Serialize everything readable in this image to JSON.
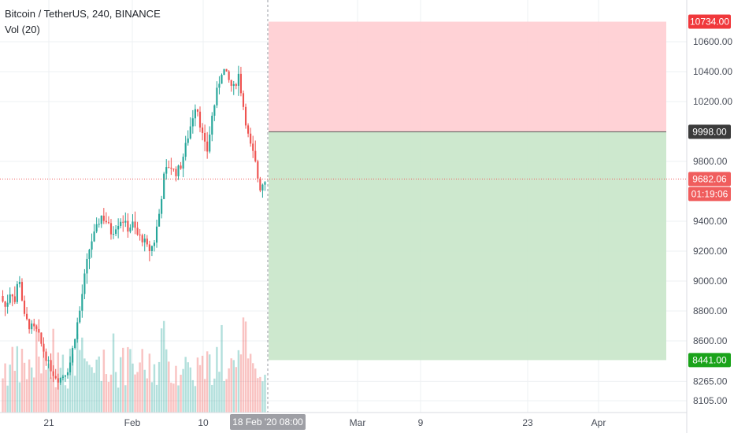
{
  "legend": {
    "title": "Bitcoin / TetherUS, 240, BINANCE",
    "indicator": "Vol (20)"
  },
  "colors": {
    "up": "#26a69a",
    "down": "#ef5350",
    "stop_zone": "#ffcdd2",
    "target_zone": "#c8e6c9",
    "stop_tag": "#f0383b",
    "target_tag": "#1aa31a",
    "entry_tag": "#3b3b3b",
    "price_tag": "#f05d5d",
    "time_tag": "#9e9fa5"
  },
  "chart_data": {
    "type": "candlestick",
    "y_axis": {
      "ticks": [
        "10600.00",
        "10400.00",
        "10200.00",
        "9800.00",
        "9400.00",
        "9200.00",
        "9000.00",
        "8800.00",
        "8600.00",
        "8265.00",
        "8105.00"
      ]
    },
    "x_axis": {
      "ticks": [
        "21",
        "Feb",
        "10",
        "Mar",
        "9",
        "23",
        "Apr"
      ]
    },
    "position": {
      "stop_loss": "10734.00",
      "entry": "9998.00",
      "take_profit": "8441.00"
    },
    "last_price": "9682.06",
    "countdown": "01:19:06",
    "crosshair_time": "18 Feb '20  08:00",
    "price_path": [
      [
        0,
        8900
      ],
      [
        0.02,
        8820
      ],
      [
        0.04,
        8950
      ],
      [
        0.055,
        8860
      ],
      [
        0.07,
        9050
      ],
      [
        0.09,
        8760
      ],
      [
        0.11,
        8700
      ],
      [
        0.14,
        8660
      ],
      [
        0.16,
        8540
      ],
      [
        0.18,
        8420
      ],
      [
        0.2,
        8330
      ],
      [
        0.22,
        8280
      ],
      [
        0.24,
        8320
      ],
      [
        0.26,
        8380
      ],
      [
        0.28,
        8620
      ],
      [
        0.3,
        8800
      ],
      [
        0.32,
        9050
      ],
      [
        0.34,
        9250
      ],
      [
        0.36,
        9330
      ],
      [
        0.38,
        9440
      ],
      [
        0.4,
        9400
      ],
      [
        0.42,
        9320
      ],
      [
        0.44,
        9380
      ],
      [
        0.46,
        9420
      ],
      [
        0.48,
        9350
      ],
      [
        0.5,
        9380
      ],
      [
        0.52,
        9300
      ],
      [
        0.54,
        9280
      ],
      [
        0.56,
        9200
      ],
      [
        0.58,
        9250
      ],
      [
        0.6,
        9450
      ],
      [
        0.62,
        9720
      ],
      [
        0.64,
        9780
      ],
      [
        0.66,
        9720
      ],
      [
        0.68,
        9760
      ],
      [
        0.7,
        9900
      ],
      [
        0.72,
        10050
      ],
      [
        0.74,
        10200
      ],
      [
        0.76,
        10000
      ],
      [
        0.78,
        9850
      ],
      [
        0.8,
        10100
      ],
      [
        0.82,
        10280
      ],
      [
        0.84,
        10430
      ],
      [
        0.86,
        10350
      ],
      [
        0.88,
        10280
      ],
      [
        0.9,
        10380
      ],
      [
        0.92,
        10150
      ],
      [
        0.94,
        9930
      ],
      [
        0.96,
        9820
      ],
      [
        0.98,
        9620
      ],
      [
        1.0,
        9682
      ]
    ]
  }
}
